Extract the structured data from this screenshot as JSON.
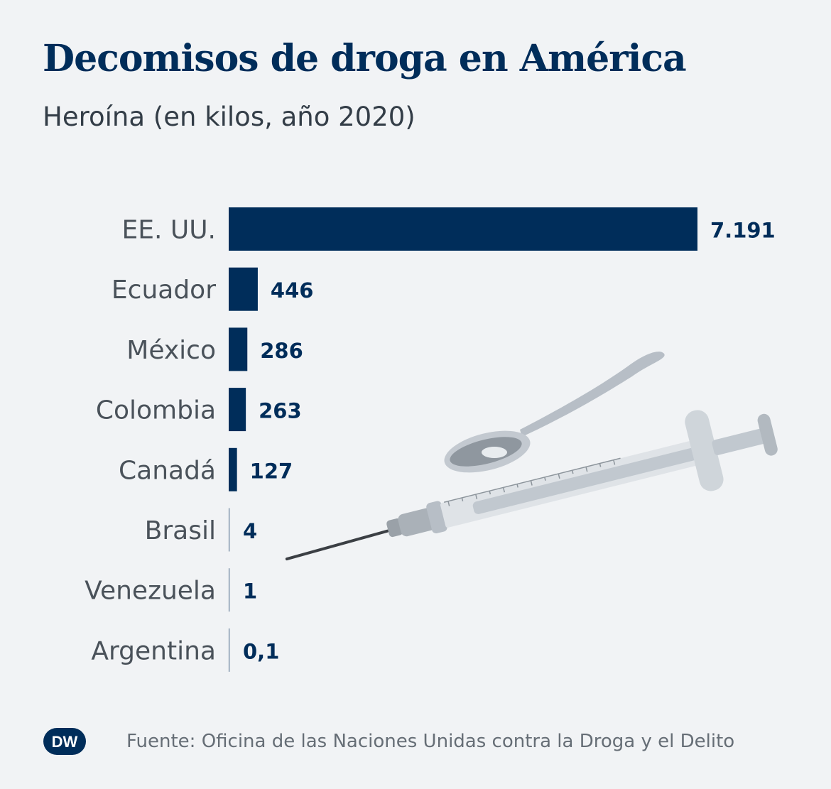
{
  "title": "Decomisos de droga en América",
  "subtitle": "Heroína (en kilos, año 2020)",
  "source": "Fuente: Oficina de las Naciones Unidas contra la Droga y el Delito",
  "logo": {
    "text": "DW"
  },
  "colors": {
    "bar": "#002d5a",
    "zero_bar": "#cfd6de",
    "background": "#f1f3f5"
  },
  "chart_data": {
    "type": "bar",
    "orientation": "horizontal",
    "title": "Decomisos de droga en América",
    "subtitle": "Heroína (en kilos, año 2020)",
    "categories": [
      "EE. UU.",
      "Ecuador",
      "México",
      "Colombia",
      "Canadá",
      "Brasil",
      "Venezuela",
      "Argentina"
    ],
    "values": [
      7191,
      446,
      286,
      263,
      127,
      4,
      1,
      0.1
    ],
    "value_labels": [
      "7.191",
      "446",
      "286",
      "263",
      "127",
      "4",
      "1",
      "0,1"
    ],
    "xlim": [
      0,
      7191
    ],
    "grid": false,
    "legend": "none"
  },
  "illustration": {
    "icons": [
      "spoon-icon",
      "syringe-icon"
    ]
  }
}
